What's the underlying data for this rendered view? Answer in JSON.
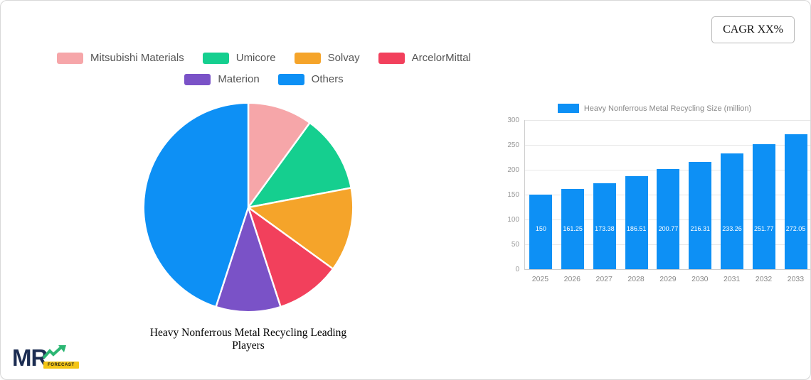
{
  "cagr_label": "CAGR XX%",
  "logo": {
    "mr": "MR",
    "forecast": "FORECAST"
  },
  "chart_data": [
    {
      "type": "pie",
      "title": "Heavy Nonferrous Metal Recycling Leading Players",
      "labels": [
        "Mitsubishi Materials",
        "Umicore",
        "Solvay",
        "ArcelorMittal",
        "Materion",
        "Others"
      ],
      "values": [
        10,
        12,
        13,
        10,
        10,
        45
      ],
      "colors": [
        "#f6a6a9",
        "#15cf8f",
        "#f5a42a",
        "#f2405c",
        "#7a52c7",
        "#0d90f5"
      ],
      "legend_position": "top",
      "start_angle_deg": -90,
      "direction": "clockwise"
    },
    {
      "type": "bar",
      "legend": "Heavy Nonferrous Metal Recycling Size (million)",
      "categories": [
        "2025",
        "2026",
        "2027",
        "2028",
        "2029",
        "2030",
        "2031",
        "2032",
        "2033"
      ],
      "values": [
        150,
        161.25,
        173.38,
        186.51,
        200.77,
        216.31,
        233.26,
        251.77,
        272.05
      ],
      "value_labels": [
        "150",
        "161.25",
        "173.38",
        "186.51",
        "200.77",
        "216.31",
        "233.26",
        "251.77",
        "272.05"
      ],
      "ylim": [
        0,
        300
      ],
      "yticks": [
        0,
        50,
        100,
        150,
        200,
        250,
        300
      ],
      "bar_color": "#0d90f5",
      "grid": true,
      "legend_position": "top"
    }
  ]
}
